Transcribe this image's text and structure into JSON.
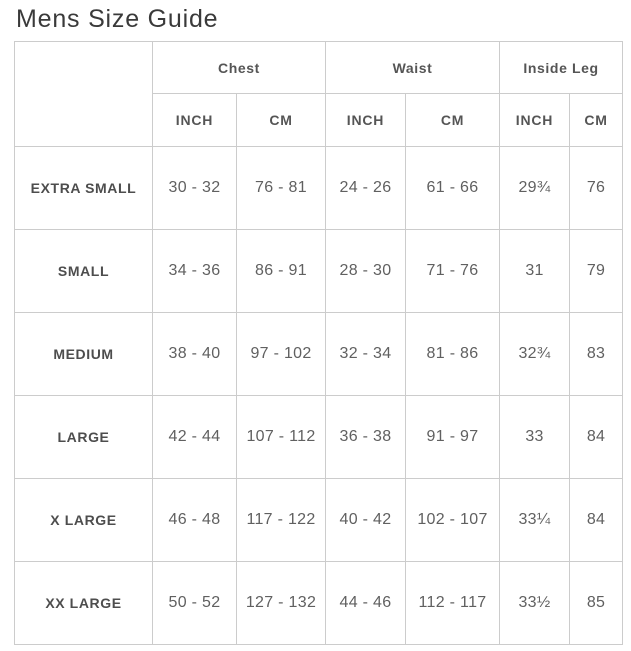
{
  "page": {
    "title": "Mens Size Guide"
  },
  "table": {
    "groups": [
      {
        "label": "Chest"
      },
      {
        "label": "Waist"
      },
      {
        "label": "Inside Leg"
      }
    ],
    "units": [
      "INCH",
      "CM",
      "INCH",
      "CM",
      "INCH",
      "CM"
    ],
    "rows": [
      {
        "size": "EXTRA SMALL",
        "values": [
          "30 - 32",
          "76 - 81",
          "24 - 26",
          "61 - 66",
          "29¾",
          "76"
        ]
      },
      {
        "size": "SMALL",
        "values": [
          "34 - 36",
          "86 - 91",
          "28 - 30",
          "71 - 76",
          "31",
          "79"
        ]
      },
      {
        "size": "MEDIUM",
        "values": [
          "38 - 40",
          "97 - 102",
          "32 - 34",
          "81 - 86",
          "32¾",
          "83"
        ]
      },
      {
        "size": "LARGE",
        "values": [
          "42 - 44",
          "107 - 112",
          "36 - 38",
          "91 - 97",
          "33",
          "84"
        ]
      },
      {
        "size": "X LARGE",
        "values": [
          "46 - 48",
          "117 - 122",
          "40 - 42",
          "102 - 107",
          "33¼",
          "84"
        ]
      },
      {
        "size": "XX LARGE",
        "values": [
          "50 - 52",
          "127 - 132",
          "44 - 46",
          "112 - 117",
          "33½",
          "85"
        ]
      }
    ]
  }
}
